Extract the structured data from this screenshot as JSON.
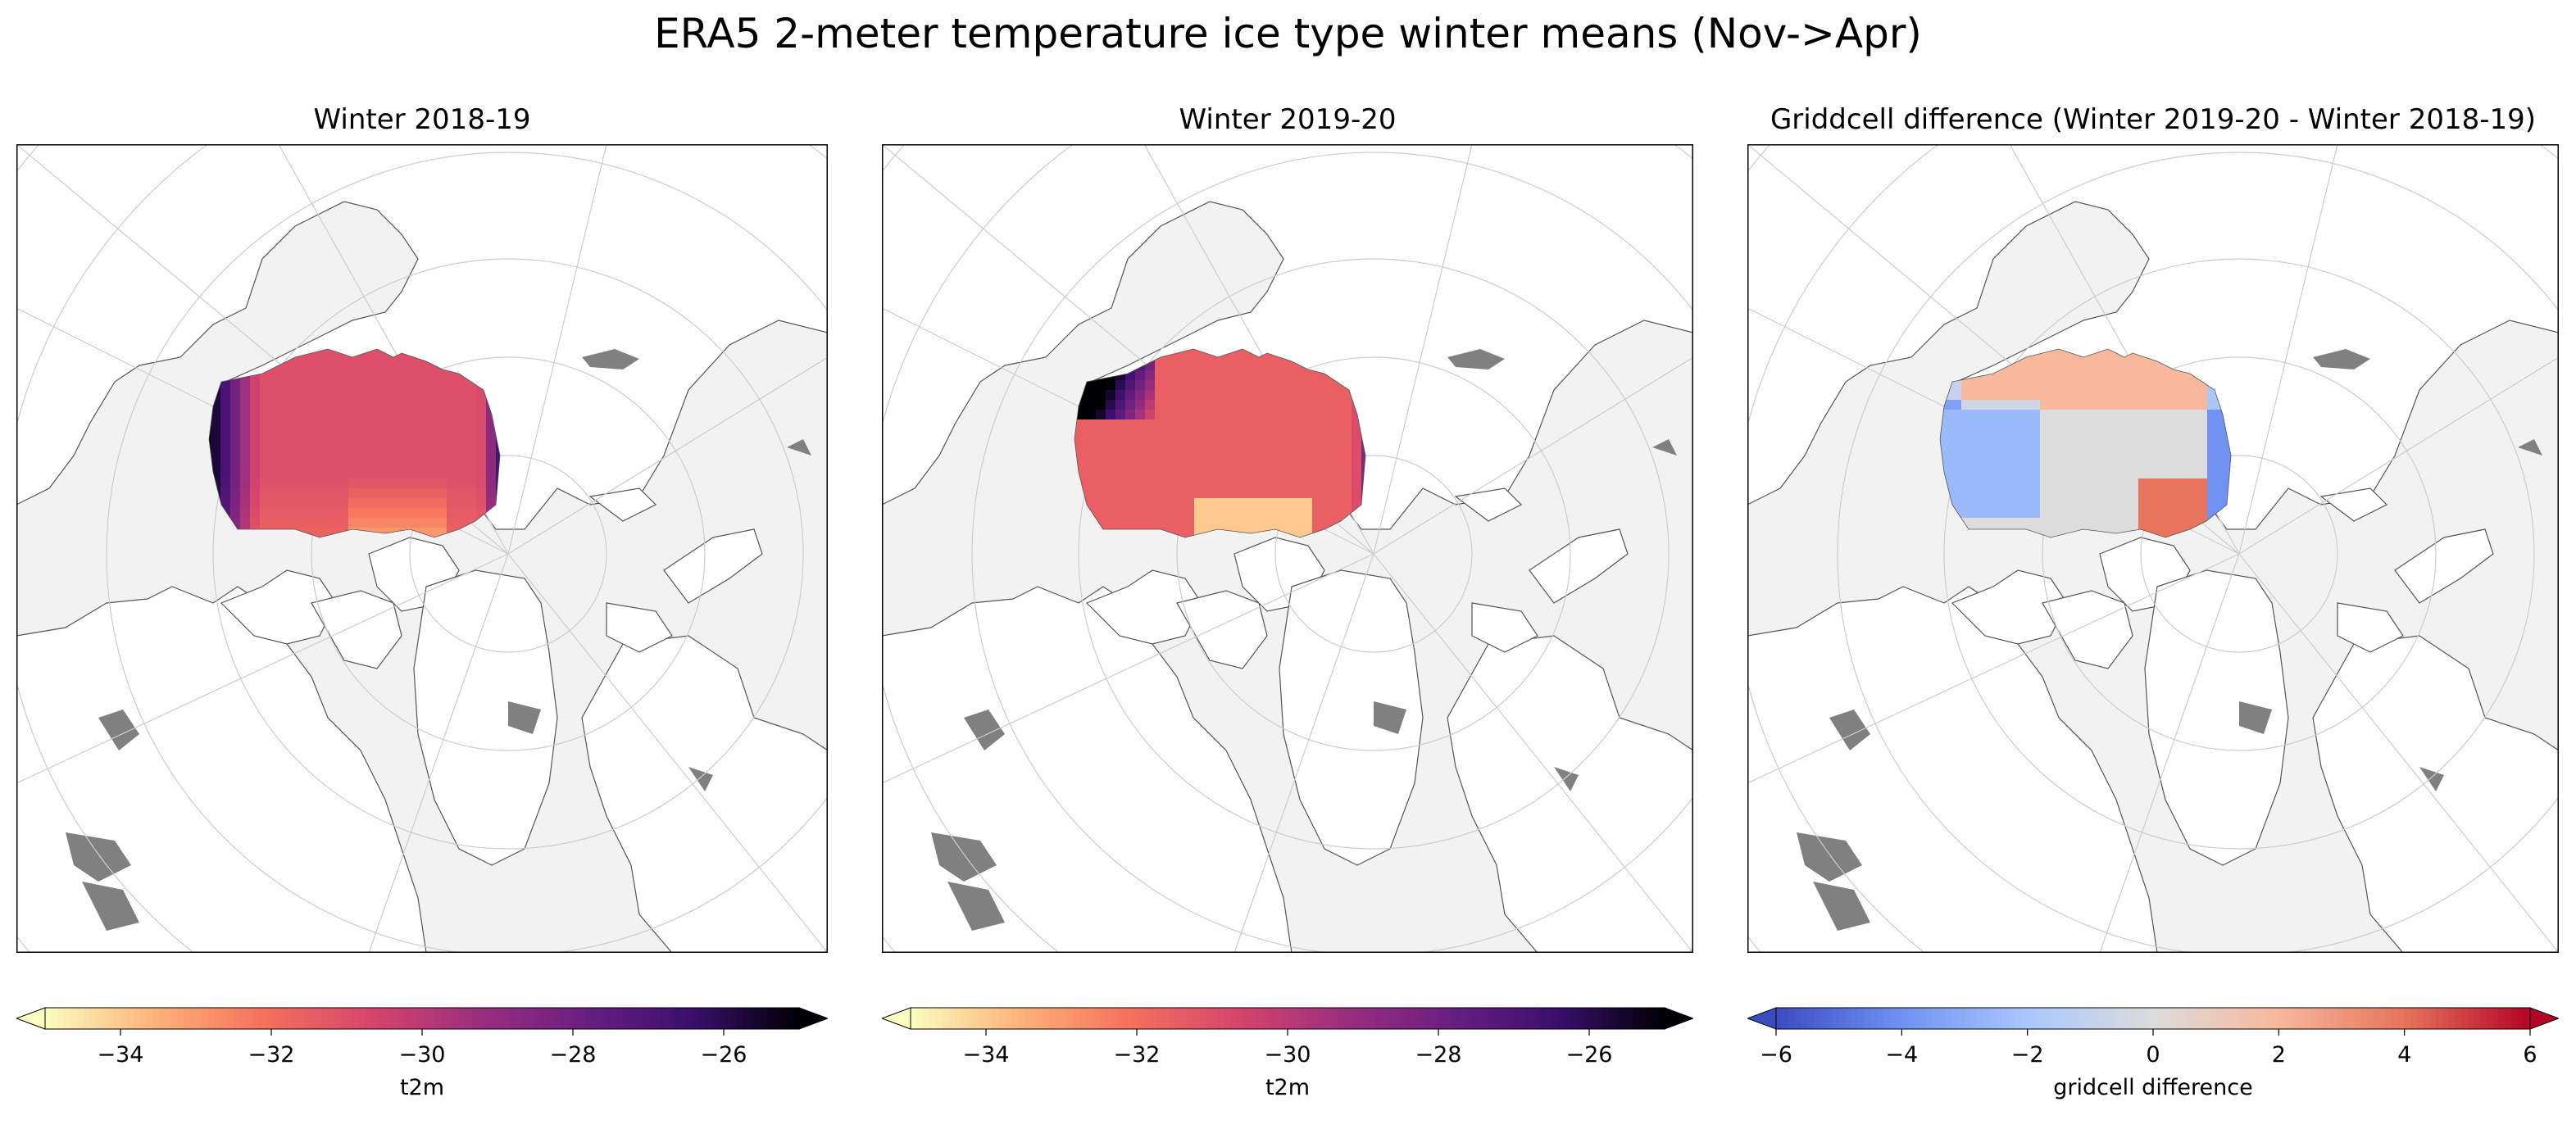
{
  "figure": {
    "title": "ERA5 2-meter temperature ice type winter means (Nov->Apr)"
  },
  "panels": [
    {
      "title": "Winter 2018-19",
      "field": "t2m",
      "colormap": "magma_r"
    },
    {
      "title": "Winter 2019-20",
      "field": "t2m",
      "colormap": "magma_r"
    },
    {
      "title": "Griddcell difference (Winter 2019-20 - Winter 2018-19)",
      "field": "gridcell difference",
      "colormap": "coolwarm"
    }
  ],
  "colorbars": [
    {
      "label": "t2m",
      "ticks": [
        "−34",
        "−32",
        "−30",
        "−28",
        "−26"
      ],
      "tick_values": [
        -34,
        -32,
        -30,
        -28,
        -26
      ],
      "range": [
        -35,
        -25
      ],
      "extend": "both"
    },
    {
      "label": "t2m",
      "ticks": [
        "−34",
        "−32",
        "−30",
        "−28",
        "−26"
      ],
      "tick_values": [
        -34,
        -32,
        -30,
        -28,
        -26
      ],
      "range": [
        -35,
        -25
      ],
      "extend": "both"
    },
    {
      "label": "gridcell difference",
      "ticks": [
        "−6",
        "−4",
        "−2",
        "0",
        "2",
        "4",
        "6"
      ],
      "tick_values": [
        -6,
        -4,
        -2,
        0,
        2,
        4,
        6
      ],
      "range": [
        -6,
        6
      ],
      "extend": "both"
    }
  ],
  "colors": {
    "land": "#ffffff",
    "ocean": "#f2f2f2",
    "lakes": "#808080",
    "coastline": "#555555",
    "gridlines": "#cccccc",
    "magma_r": [
      "#fcfdbf",
      "#fdb37a",
      "#f6735c",
      "#d8466c",
      "#9d2e7e",
      "#6a1f80",
      "#3a0f6e",
      "#000004"
    ],
    "coolwarm": [
      "#3b4cc0",
      "#6f92f3",
      "#aac7fd",
      "#dddcdc",
      "#f7b89c",
      "#e7745b",
      "#b40426"
    ]
  }
}
